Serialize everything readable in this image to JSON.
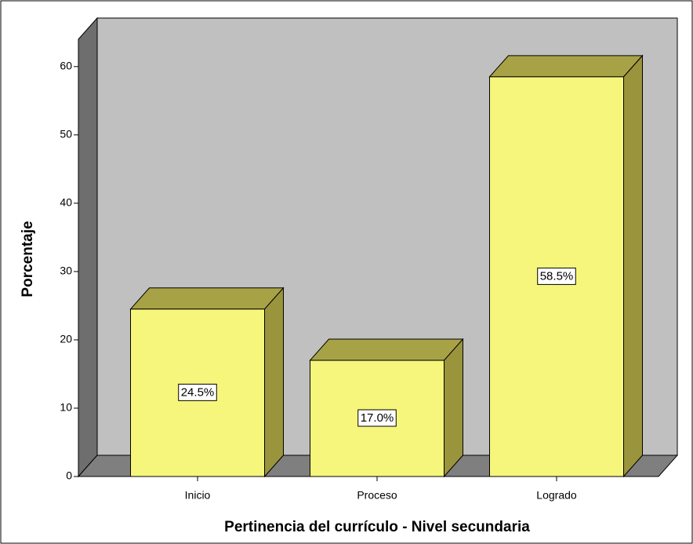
{
  "chart_data": {
    "type": "bar3d",
    "categories": [
      "Inicio",
      "Proceso",
      "Logrado"
    ],
    "values": [
      24.5,
      17.0,
      58.5
    ],
    "value_labels": [
      "24.5%",
      "17.0%",
      "58.5%"
    ],
    "color": "#f6f67c",
    "x_label": "Pertinencia del currículo - Nivel secundaria",
    "y_label": "Porcentaje",
    "ylim": [
      0,
      64
    ],
    "yticks": [
      0,
      10,
      20,
      30,
      40,
      50,
      60
    ],
    "grid": false
  }
}
